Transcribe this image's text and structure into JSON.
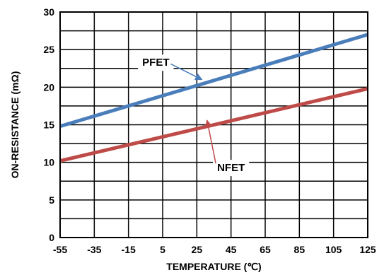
{
  "chart_data": {
    "type": "line",
    "title": "",
    "xlabel": "TEMPERATURE (℃)",
    "ylabel": "ON-RESISTANCE (mΩ)",
    "xlim": [
      -55,
      125
    ],
    "ylim": [
      0,
      30
    ],
    "x_ticks": [
      "-55",
      "-35",
      "-15",
      "5",
      "25",
      "45",
      "65",
      "85",
      "105",
      "125"
    ],
    "y_ticks": [
      "0",
      "5",
      "10",
      "15",
      "20",
      "25",
      "30"
    ],
    "grid": true,
    "legend": "none",
    "series": [
      {
        "name": "PFET",
        "color": "#4a7ebb",
        "x": [
          -55,
          125
        ],
        "y": [
          14.8,
          27.0
        ],
        "label_at": {
          "x": 1,
          "y": 23.3
        },
        "arrow_to": {
          "x": 28,
          "y": 21.0
        }
      },
      {
        "name": "NFET",
        "color": "#be4b48",
        "x": [
          -55,
          125
        ],
        "y": [
          10.2,
          19.8
        ],
        "label_at": {
          "x": 45,
          "y": 9.3
        },
        "arrow_to": {
          "x": 31,
          "y": 15.6
        }
      }
    ]
  }
}
